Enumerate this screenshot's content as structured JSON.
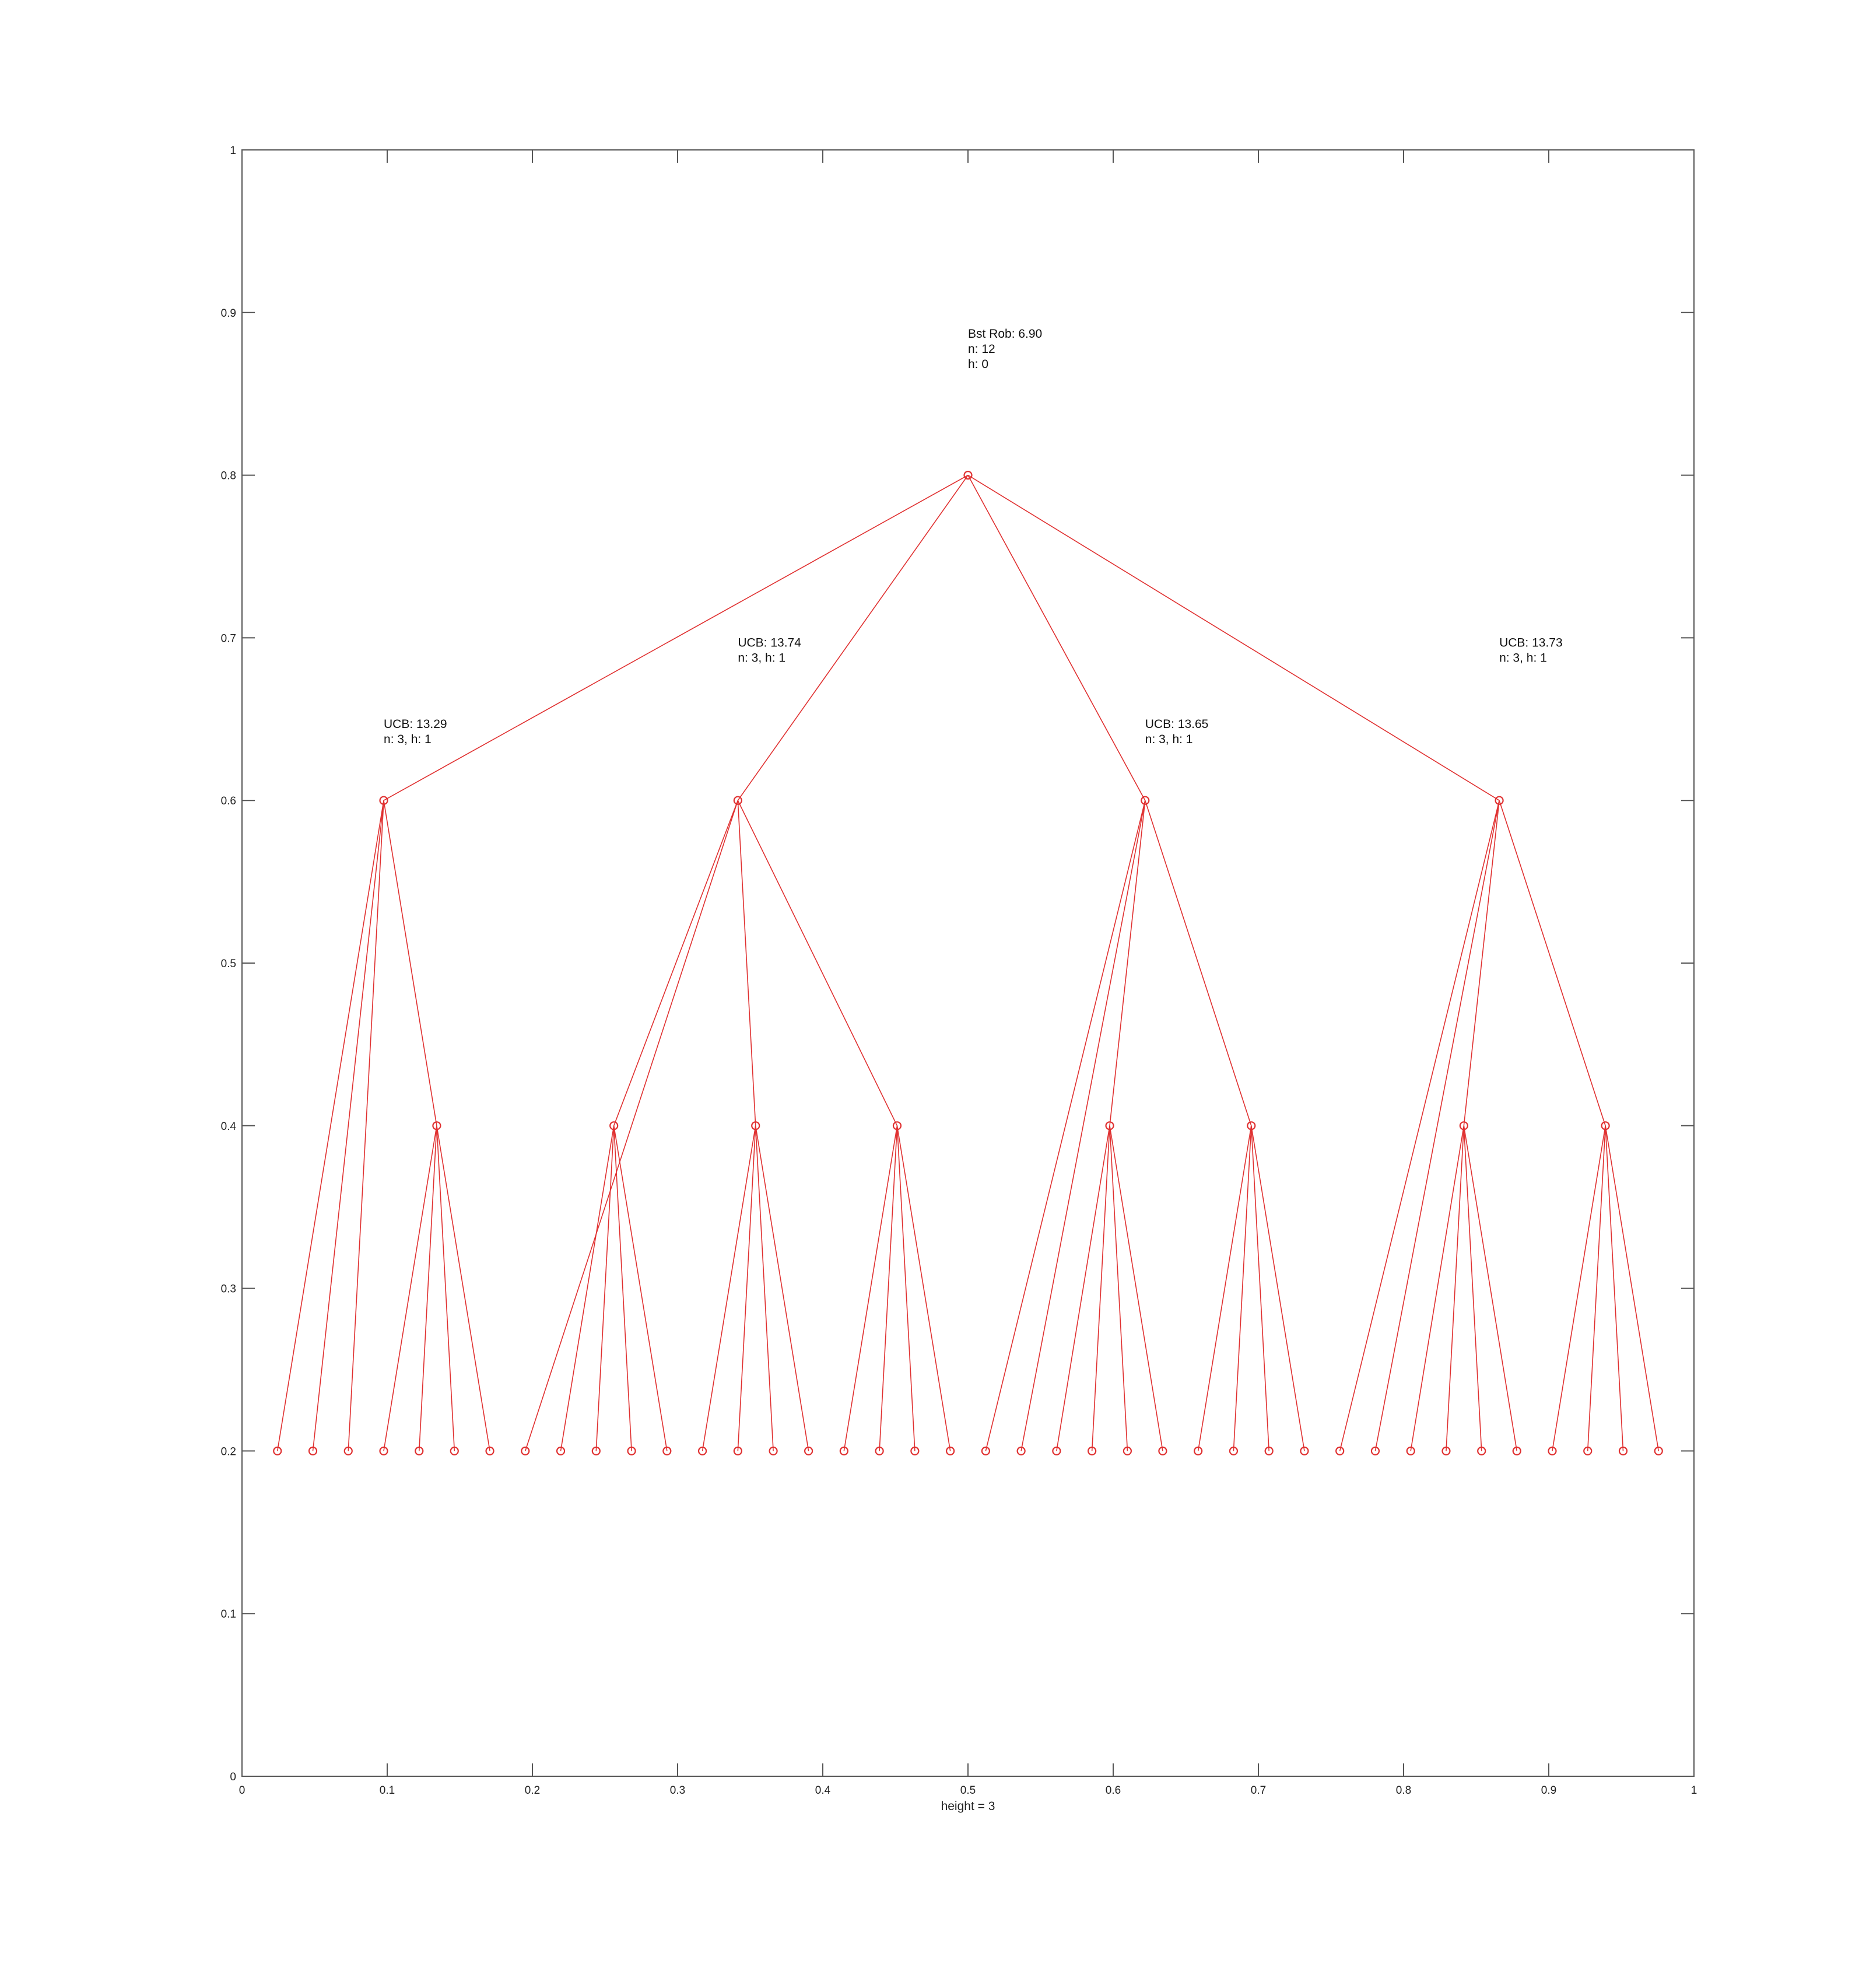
{
  "chart_data": {
    "type": "scatter",
    "title": "",
    "xlabel": "height = 3",
    "ylabel": "",
    "xlim": [
      0,
      1
    ],
    "ylim": [
      0,
      1
    ],
    "grid": false,
    "colors": {
      "series": "#e03030",
      "axis": "#555555"
    },
    "x_ticks": [
      "0",
      "0.1",
      "0.2",
      "0.3",
      "0.4",
      "0.5",
      "0.6",
      "0.7",
      "0.8",
      "0.9",
      "1"
    ],
    "y_ticks": [
      "0",
      "0.1",
      "0.2",
      "0.3",
      "0.4",
      "0.5",
      "0.6",
      "0.7",
      "0.8",
      "0.9",
      "1"
    ],
    "nodes": [
      {
        "id": "r",
        "x": 0.5,
        "y": 0.8
      },
      {
        "id": "a",
        "x": 0.0976,
        "y": 0.6
      },
      {
        "id": "b",
        "x": 0.3415,
        "y": 0.6
      },
      {
        "id": "c",
        "x": 0.622,
        "y": 0.6
      },
      {
        "id": "d",
        "x": 0.8659,
        "y": 0.6
      },
      {
        "id": "a2",
        "x": 0.1341,
        "y": 0.4
      },
      {
        "id": "b1",
        "x": 0.2561,
        "y": 0.4
      },
      {
        "id": "b2",
        "x": 0.3537,
        "y": 0.4
      },
      {
        "id": "b3",
        "x": 0.4512,
        "y": 0.4
      },
      {
        "id": "c1",
        "x": 0.5976,
        "y": 0.4
      },
      {
        "id": "c2",
        "x": 0.6951,
        "y": 0.4
      },
      {
        "id": "d1",
        "x": 0.8415,
        "y": 0.4
      },
      {
        "id": "d2",
        "x": 0.939,
        "y": 0.4
      },
      {
        "id": "l1",
        "x": 0.0244,
        "y": 0.2
      },
      {
        "id": "l2",
        "x": 0.0488,
        "y": 0.2
      },
      {
        "id": "l3",
        "x": 0.0732,
        "y": 0.2
      },
      {
        "id": "l4",
        "x": 0.0976,
        "y": 0.2
      },
      {
        "id": "l5",
        "x": 0.122,
        "y": 0.2
      },
      {
        "id": "l6",
        "x": 0.1463,
        "y": 0.2
      },
      {
        "id": "l7",
        "x": 0.1707,
        "y": 0.2
      },
      {
        "id": "l8",
        "x": 0.1951,
        "y": 0.2
      },
      {
        "id": "l9",
        "x": 0.2195,
        "y": 0.2
      },
      {
        "id": "l10",
        "x": 0.2439,
        "y": 0.2
      },
      {
        "id": "l11",
        "x": 0.2683,
        "y": 0.2
      },
      {
        "id": "l12",
        "x": 0.2927,
        "y": 0.2
      },
      {
        "id": "l13",
        "x": 0.3171,
        "y": 0.2
      },
      {
        "id": "l14",
        "x": 0.3415,
        "y": 0.2
      },
      {
        "id": "l15",
        "x": 0.3659,
        "y": 0.2
      },
      {
        "id": "l16",
        "x": 0.3902,
        "y": 0.2
      },
      {
        "id": "l17",
        "x": 0.4146,
        "y": 0.2
      },
      {
        "id": "l18",
        "x": 0.439,
        "y": 0.2
      },
      {
        "id": "l19",
        "x": 0.4634,
        "y": 0.2
      },
      {
        "id": "l20",
        "x": 0.4878,
        "y": 0.2
      },
      {
        "id": "l21",
        "x": 0.5122,
        "y": 0.2
      },
      {
        "id": "l22",
        "x": 0.5366,
        "y": 0.2
      },
      {
        "id": "l23",
        "x": 0.561,
        "y": 0.2
      },
      {
        "id": "l24",
        "x": 0.5854,
        "y": 0.2
      },
      {
        "id": "l25",
        "x": 0.6098,
        "y": 0.2
      },
      {
        "id": "l26",
        "x": 0.6341,
        "y": 0.2
      },
      {
        "id": "l27",
        "x": 0.6585,
        "y": 0.2
      },
      {
        "id": "l28",
        "x": 0.6829,
        "y": 0.2
      },
      {
        "id": "l29",
        "x": 0.7073,
        "y": 0.2
      },
      {
        "id": "l30",
        "x": 0.7317,
        "y": 0.2
      },
      {
        "id": "l31",
        "x": 0.7561,
        "y": 0.2
      },
      {
        "id": "l32",
        "x": 0.7805,
        "y": 0.2
      },
      {
        "id": "l33",
        "x": 0.8049,
        "y": 0.2
      },
      {
        "id": "l34",
        "x": 0.8293,
        "y": 0.2
      },
      {
        "id": "l35",
        "x": 0.8537,
        "y": 0.2
      },
      {
        "id": "l36",
        "x": 0.878,
        "y": 0.2
      },
      {
        "id": "l37",
        "x": 0.9024,
        "y": 0.2
      },
      {
        "id": "l38",
        "x": 0.9268,
        "y": 0.2
      },
      {
        "id": "l39",
        "x": 0.9512,
        "y": 0.2
      },
      {
        "id": "l40",
        "x": 0.9756,
        "y": 0.2
      }
    ],
    "edges": [
      [
        "r",
        "a"
      ],
      [
        "r",
        "b"
      ],
      [
        "r",
        "c"
      ],
      [
        "r",
        "d"
      ],
      [
        "a",
        "l1"
      ],
      [
        "a",
        "l2"
      ],
      [
        "a",
        "l3"
      ],
      [
        "a",
        "a2"
      ],
      [
        "a2",
        "l4"
      ],
      [
        "a2",
        "l5"
      ],
      [
        "a2",
        "l6"
      ],
      [
        "a2",
        "l7"
      ],
      [
        "b",
        "l8"
      ],
      [
        "b",
        "b1"
      ],
      [
        "b",
        "b2"
      ],
      [
        "b",
        "b3"
      ],
      [
        "b1",
        "l9"
      ],
      [
        "b1",
        "l10"
      ],
      [
        "b1",
        "l11"
      ],
      [
        "b1",
        "l12"
      ],
      [
        "b2",
        "l13"
      ],
      [
        "b2",
        "l14"
      ],
      [
        "b2",
        "l15"
      ],
      [
        "b2",
        "l16"
      ],
      [
        "b3",
        "l17"
      ],
      [
        "b3",
        "l18"
      ],
      [
        "b3",
        "l19"
      ],
      [
        "b3",
        "l20"
      ],
      [
        "c",
        "l21"
      ],
      [
        "c",
        "l22"
      ],
      [
        "c",
        "c1"
      ],
      [
        "c",
        "c2"
      ],
      [
        "c1",
        "l23"
      ],
      [
        "c1",
        "l24"
      ],
      [
        "c1",
        "l25"
      ],
      [
        "c1",
        "l26"
      ],
      [
        "c2",
        "l27"
      ],
      [
        "c2",
        "l28"
      ],
      [
        "c2",
        "l29"
      ],
      [
        "c2",
        "l30"
      ],
      [
        "d",
        "l31"
      ],
      [
        "d",
        "l32"
      ],
      [
        "d",
        "d1"
      ],
      [
        "d",
        "d2"
      ],
      [
        "d1",
        "l33"
      ],
      [
        "d1",
        "l34"
      ],
      [
        "d1",
        "l35"
      ],
      [
        "d1",
        "l36"
      ],
      [
        "d2",
        "l37"
      ],
      [
        "d2",
        "l38"
      ],
      [
        "d2",
        "l39"
      ],
      [
        "d2",
        "l40"
      ]
    ],
    "annotations": [
      {
        "x": 0.5,
        "y": 0.8845,
        "lines": [
          "Bst Rob: 6.90",
          "n: 12",
          "h: 0"
        ]
      },
      {
        "x": 0.0976,
        "y": 0.6445,
        "lines": [
          "UCB: 13.29",
          "n: 3, h: 1"
        ]
      },
      {
        "x": 0.3415,
        "y": 0.6945,
        "lines": [
          "UCB: 13.74",
          "n: 3, h: 1"
        ]
      },
      {
        "x": 0.622,
        "y": 0.6445,
        "lines": [
          "UCB: 13.65",
          "n: 3, h: 1"
        ]
      },
      {
        "x": 0.8659,
        "y": 0.6945,
        "lines": [
          "UCB: 13.73",
          "n: 3, h: 1"
        ]
      }
    ]
  }
}
